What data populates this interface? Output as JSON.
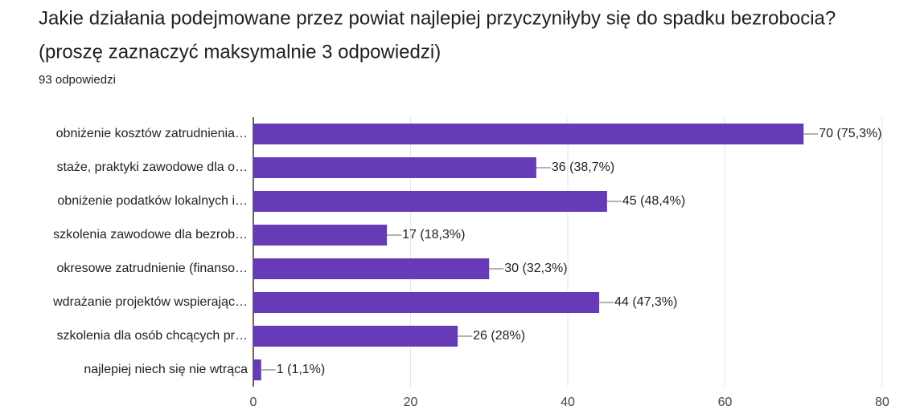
{
  "chart_data": {
    "type": "bar",
    "orientation": "horizontal",
    "title": [
      "Jakie działania podejmowane przez powiat najlepiej przyczyniłyby się do spadku bezrobocia?",
      "(proszę zaznaczyć maksymalnie 3 odpowiedzi)"
    ],
    "subtitle": "93 odpowiedzi",
    "categories": [
      "obniżenie kosztów zatrudnienia…",
      "staże, praktyki zawodowe dla o…",
      "obniżenie podatków lokalnych i…",
      "szkolenia zawodowe dla bezrob…",
      "okresowe zatrudnienie (finanso…",
      "wdrażanie projektów wspierając…",
      "szkolenia dla osób chcących pr…",
      "najlepiej niech się nie wtrąca"
    ],
    "values": [
      70,
      36,
      45,
      17,
      30,
      44,
      26,
      1
    ],
    "value_labels": [
      "70 (75,3%)",
      "36 (38,7%)",
      "45 (48,4%)",
      "17 (18,3%)",
      "30 (32,3%)",
      "44 (47,3%)",
      "26 (28%)",
      "1 (1,1%)"
    ],
    "color": "#673ab7",
    "xlim": [
      0,
      80
    ],
    "xticks": [
      0,
      20,
      40,
      60,
      80
    ],
    "grid": true
  }
}
